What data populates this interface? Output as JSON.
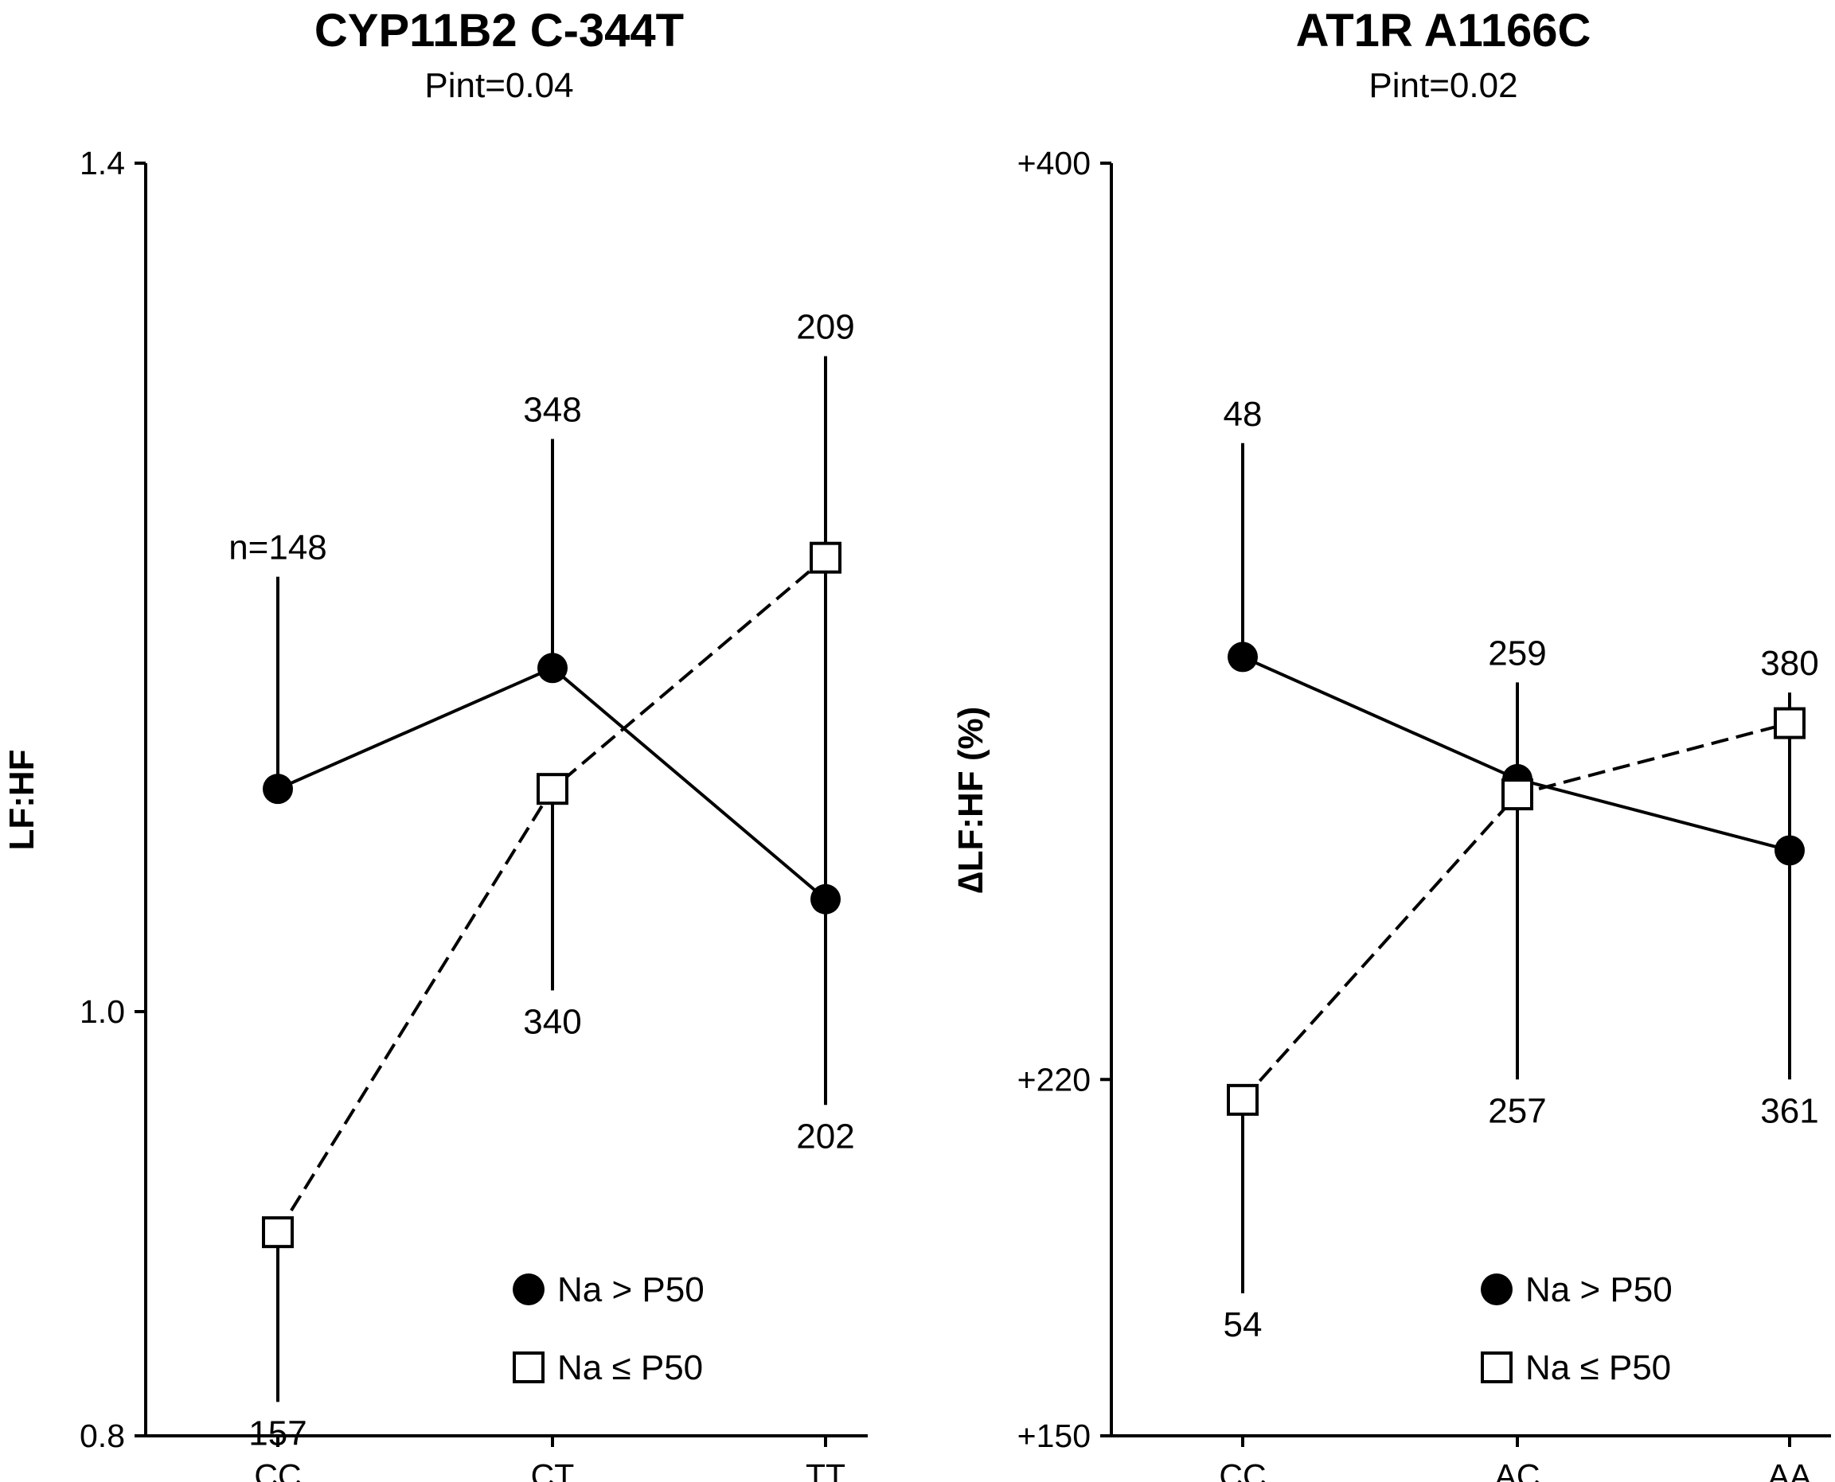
{
  "chart_data": [
    {
      "type": "line",
      "title": "CYP11B2 C-344T",
      "subtitle": "Pint=0.04",
      "xlabel": "",
      "ylabel": "LF:HF",
      "categories": [
        "CC",
        "CT",
        "TT"
      ],
      "ylim": [
        0.8,
        1.4
      ],
      "yticks": [
        0.8,
        1.0,
        1.4
      ],
      "ytick_labels": [
        "0.8",
        "1.0",
        "1.4"
      ],
      "series": [
        {
          "name": "Na > P50",
          "marker": "filled-circle",
          "line_style": "solid",
          "values": [
            1.105,
            1.162,
            1.053
          ],
          "error_bar_end": [
            1.205,
            1.27,
            1.309
          ],
          "n_labels": [
            "n=148",
            "348",
            "209"
          ]
        },
        {
          "name": "Na ≤ P50",
          "marker": "open-square",
          "line_style": "dashed",
          "values": [
            0.896,
            1.105,
            1.214
          ],
          "error_bar_end": [
            0.816,
            1.01,
            0.956
          ],
          "n_labels": [
            "157",
            "340",
            "202"
          ]
        }
      ],
      "legend": [
        "Na > P50",
        "Na ≤ P50"
      ],
      "legend_position": "bottom-right"
    },
    {
      "type": "line",
      "title": "AT1R A1166C",
      "subtitle": "Pint=0.02",
      "xlabel": "",
      "ylabel": "∆LF:HF (%)",
      "categories": [
        "CC",
        "AC",
        "AA"
      ],
      "ylim": [
        150,
        400
      ],
      "yticks": [
        150,
        220,
        400
      ],
      "ytick_labels": [
        "+150",
        "+220",
        "+400"
      ],
      "series": [
        {
          "name": "Na > P50",
          "marker": "filled-circle",
          "line_style": "solid",
          "values": [
            303,
            279,
            265
          ],
          "error_bar_end": [
            345,
            298,
            296
          ],
          "n_labels": [
            "48",
            "259",
            "380"
          ]
        },
        {
          "name": "Na ≤ P50",
          "marker": "open-square",
          "line_style": "dashed",
          "values": [
            216,
            276,
            290
          ],
          "error_bar_end": [
            178,
            220,
            220
          ],
          "n_labels": [
            "54",
            "257",
            "361"
          ]
        }
      ],
      "legend": [
        "Na > P50",
        "Na ≤ P50"
      ],
      "legend_position": "bottom-right"
    }
  ]
}
